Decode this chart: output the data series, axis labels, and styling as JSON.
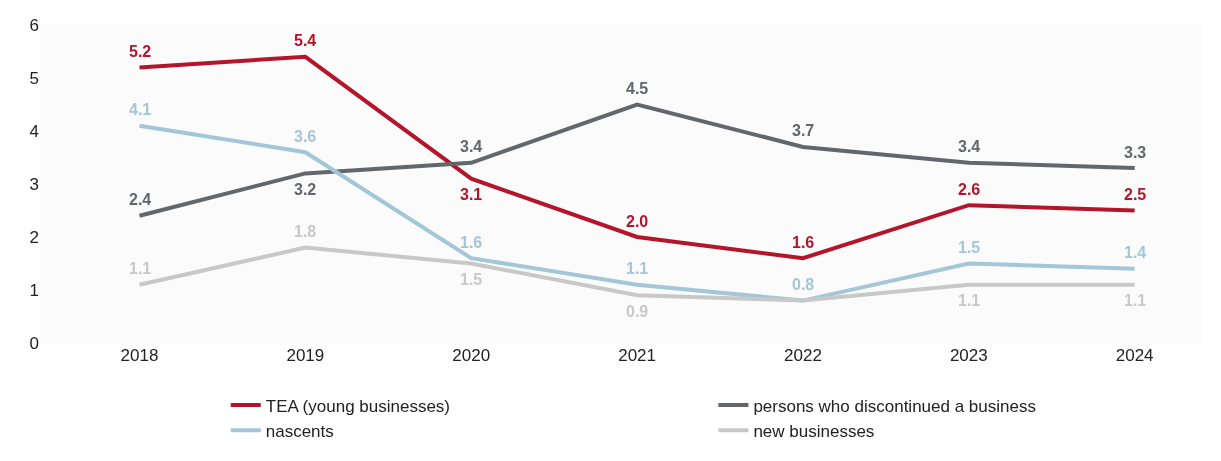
{
  "chart_data": {
    "type": "line",
    "categories": [
      "2018",
      "2019",
      "2020",
      "2021",
      "2022",
      "2023",
      "2024"
    ],
    "ylim": [
      0,
      6
    ],
    "yticks": [
      0,
      1,
      2,
      3,
      4,
      5,
      6
    ],
    "legend": "bottom",
    "line_style": "solid",
    "series": [
      {
        "name": "TEA (young businesses)",
        "color": "#b5152b",
        "values": [
          5.2,
          5.4,
          3.1,
          2.0,
          1.6,
          2.6,
          2.5
        ],
        "value_labels": [
          "5.2",
          "5.4",
          "3.1",
          "2.0",
          "1.6",
          "2.6",
          "2.5"
        ]
      },
      {
        "name": "persons who discontinued a business",
        "color": "#63666a",
        "values": [
          2.4,
          3.2,
          3.4,
          4.5,
          3.7,
          3.4,
          3.3
        ],
        "value_labels": [
          "2.4",
          "3.2",
          "3.4",
          "4.5",
          "3.7",
          "3.4",
          "3.3"
        ]
      },
      {
        "name": "nascents",
        "color": "#a3c6d9",
        "values": [
          4.1,
          3.6,
          1.6,
          1.1,
          0.8,
          1.5,
          1.4
        ],
        "value_labels": [
          "4.1",
          "3.6",
          "1.6",
          "1.1",
          "0.8",
          "1.5",
          "1.4"
        ]
      },
      {
        "name": "new businesses",
        "color": "#c8c8c8",
        "values": [
          1.1,
          1.8,
          1.5,
          0.9,
          0.8,
          1.1,
          1.1
        ],
        "value_labels": [
          "1.1",
          "1.8",
          "1.5",
          "0.9",
          null,
          "1.1",
          "1.1"
        ]
      }
    ]
  }
}
